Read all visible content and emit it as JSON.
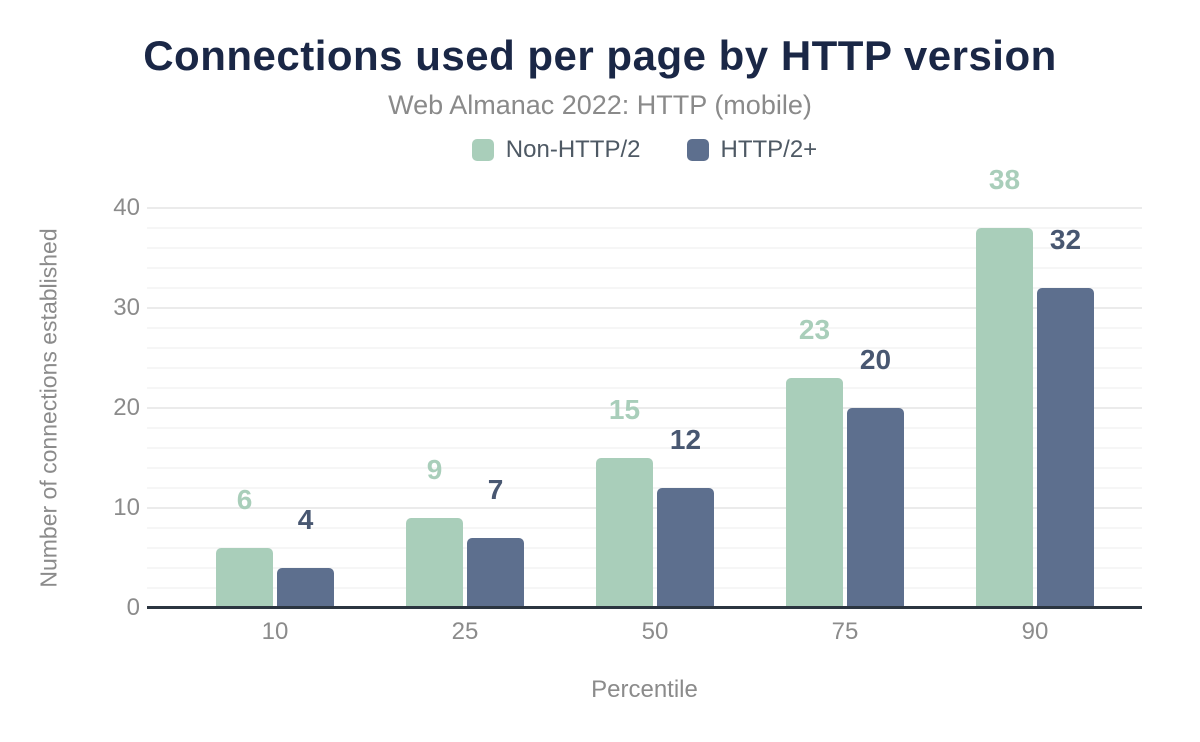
{
  "chart_data": {
    "type": "bar",
    "title": "Connections used per page by HTTP version",
    "subtitle": "Web Almanac 2022: HTTP (mobile)",
    "xlabel": "Percentile",
    "ylabel": "Number of connections established",
    "categories": [
      "10",
      "25",
      "50",
      "75",
      "90"
    ],
    "series": [
      {
        "name": "Non-HTTP/2",
        "values": [
          6,
          9,
          15,
          23,
          38
        ],
        "labels": [
          "6",
          "9",
          "15",
          "23",
          "38"
        ],
        "color": "#a9ceba",
        "label_color": "#a9ceba"
      },
      {
        "name": "HTTP/2+",
        "values": [
          4,
          7,
          12,
          20,
          32
        ],
        "labels": [
          "4",
          "7",
          "12",
          "20",
          "32"
        ],
        "color": "#5d6f8e",
        "label_color": "#485771"
      }
    ],
    "ylim": [
      0,
      40
    ],
    "yticks": [
      "0",
      "10",
      "20",
      "30",
      "40"
    ],
    "y_minor_step": 2,
    "y_major_step": 10,
    "grid": "horizontal",
    "legend_position": "top-center",
    "colors": {
      "background": "#ffffff",
      "title": "#1a2746",
      "subtitle": "#8a8a8a",
      "axis_text": "#8b8b8b",
      "legend_text": "#4e5964",
      "axis_line": "#2b3540",
      "grid_major": "#ebebeb",
      "grid_minor": "#f6f6f6"
    }
  }
}
